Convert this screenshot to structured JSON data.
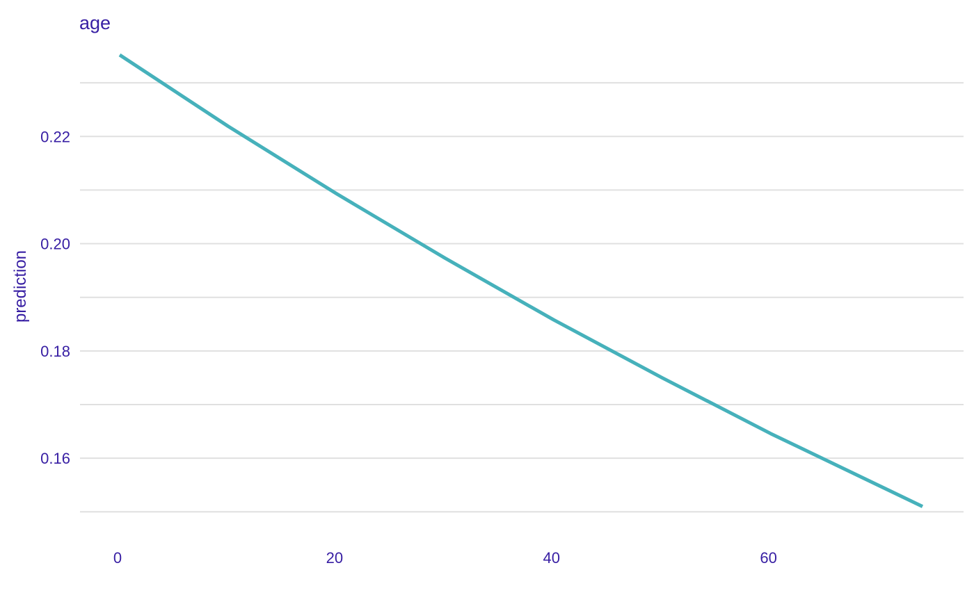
{
  "chart_data": {
    "type": "line",
    "title": "age",
    "xlabel": "",
    "ylabel": "prediction",
    "xlim": [
      0,
      74
    ],
    "ylim": [
      0.149,
      0.2352
    ],
    "x_ticks": [
      0,
      20,
      40,
      60
    ],
    "y_ticks": [
      0.16,
      0.18,
      0.2,
      0.22
    ],
    "y_minor_grid": [
      0.15,
      0.17,
      0.19,
      0.21,
      0.23
    ],
    "y_tick_labels": [
      "0.16",
      "0.18",
      "0.20",
      "0.22"
    ],
    "x_tick_labels": [
      "0",
      "20",
      "40",
      "60"
    ],
    "grid": "horizontal",
    "legend": "none",
    "colors": {
      "line": "#46b1bb",
      "text": "#371ea3",
      "grid": "#e0e0e0"
    },
    "series": [
      {
        "x": [
          0,
          10,
          20,
          30,
          40,
          50,
          60,
          74
        ],
        "y": [
          0.2352,
          0.2219,
          0.2093,
          0.1973,
          0.1858,
          0.175,
          0.1646,
          0.151
        ]
      }
    ]
  }
}
